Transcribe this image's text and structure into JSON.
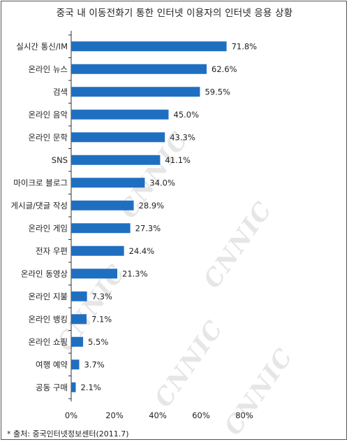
{
  "chart_data": {
    "type": "bar",
    "orientation": "horizontal",
    "title": "중국 내 이동전화기 통한 인터넷 이용자의 인터넷 응용 상황",
    "categories": [
      "실시간 통신/IM",
      "온라인 뉴스",
      "검색",
      "온라인 음악",
      "온라인 문학",
      "SNS",
      "마이크로 블로그",
      "게시글/댓글 작성",
      "온라인 게임",
      "전자 우편",
      "온라인 동영상",
      "온라인 지불",
      "온라인 뱅킹",
      "온라인 쇼핑",
      "여행 예약",
      "공동 구매"
    ],
    "values": [
      71.8,
      62.6,
      59.5,
      45.0,
      43.3,
      41.1,
      34.0,
      28.9,
      27.3,
      24.4,
      21.3,
      7.3,
      7.1,
      5.5,
      3.7,
      2.1
    ],
    "value_labels": [
      "71.8%",
      "62.6%",
      "59.5%",
      "45.0%",
      "43.3%",
      "41.1%",
      "34.0%",
      "28.9%",
      "27.3%",
      "24.4%",
      "21.3%",
      "7.3%",
      "7.1%",
      "5.5%",
      "3.7%",
      "2.1%"
    ],
    "xlim": [
      0,
      80
    ],
    "x_ticks": [
      0,
      20,
      40,
      60,
      80
    ],
    "x_tick_labels": [
      "0%",
      "20%",
      "40%",
      "60%",
      "80%"
    ],
    "bar_color": "#1f6fc1",
    "grid": false
  },
  "source": "* 출처: 중국인터넷정보센터(2011.7)",
  "watermark": "CNNIC"
}
